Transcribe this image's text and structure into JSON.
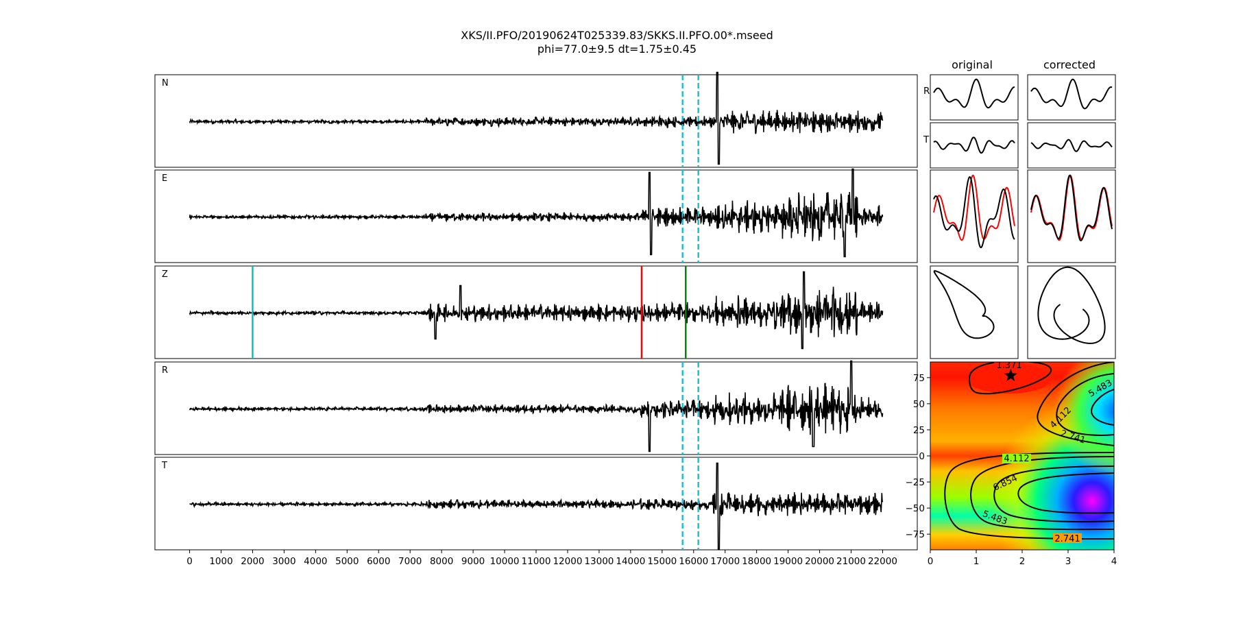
{
  "title": {
    "line1": "XKS/II.PFO/20190624T025339.83/SKKS.II.PFO.00*.mseed",
    "line2": "phi=77.0±9.5 dt=1.75±0.45"
  },
  "column_headers": {
    "original": "original",
    "corrected": "corrected"
  },
  "colors": {
    "trace": "#000000",
    "window_marker": "#17becf",
    "pick_cyan": "#00bfbf",
    "pick_red": "#ff0000",
    "pick_green": "#008000",
    "radial_particle": "#ff0000"
  },
  "chart_data": [
    {
      "type": "line",
      "description_kind": "seismogram_traces",
      "traces": [
        {
          "name": "N"
        },
        {
          "name": "E"
        },
        {
          "name": "Z"
        },
        {
          "name": "R"
        },
        {
          "name": "T"
        }
      ],
      "x_range": [
        -1100,
        23100
      ],
      "x_ticks": [
        0,
        1000,
        2000,
        3000,
        4000,
        5000,
        6000,
        7000,
        8000,
        9000,
        10000,
        11000,
        12000,
        13000,
        14000,
        15000,
        16000,
        17000,
        18000,
        19000,
        20000,
        21000,
        22000
      ],
      "data_extent": [
        0,
        22000
      ],
      "window_markers": [
        15650,
        16150
      ],
      "window_marker_traces": [
        "N",
        "E",
        "R",
        "T"
      ],
      "pick_lines": [
        {
          "trace": "Z",
          "x": 2000,
          "color": "#00bfbf"
        },
        {
          "trace": "Z",
          "x": 14350,
          "color": "#ff0000"
        },
        {
          "trace": "Z",
          "x": 15750,
          "color": "#008000"
        }
      ]
    },
    {
      "type": "line",
      "description_kind": "window_waveforms",
      "row_labels": [
        "R",
        "T"
      ],
      "columns": [
        "original",
        "corrected"
      ],
      "radial_panels": "R (red) and T (black) overlay, normalized"
    },
    {
      "type": "scatter",
      "description_kind": "particle_motion",
      "columns": [
        "original",
        "corrected"
      ]
    },
    {
      "type": "heatmap",
      "description_kind": "error_surface",
      "x_range": [
        0,
        4
      ],
      "y_range": [
        -90,
        90
      ],
      "x_ticks": [
        0,
        1,
        2,
        3,
        4
      ],
      "y_ticks": [
        75,
        50,
        25,
        0,
        -25,
        -50,
        -75
      ],
      "contour_levels": [
        "1.371",
        "2.741",
        "4.112",
        "5.483",
        "6.854"
      ],
      "best_fit": {
        "dt": 1.75,
        "phi": 77.0
      },
      "colormap": "gist_rainbow"
    }
  ]
}
